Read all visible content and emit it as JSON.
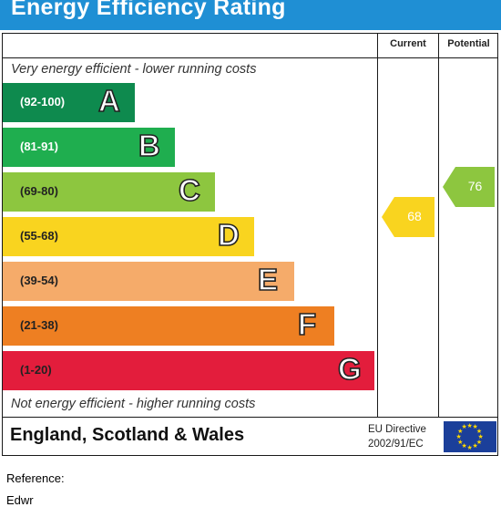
{
  "title": "Energy Efficiency Rating",
  "columns": {
    "current": "Current",
    "potential": "Potential"
  },
  "captions": {
    "top": "Very energy efficient - lower running costs",
    "bottom": "Not energy efficient - higher running costs"
  },
  "footer": {
    "region": "England, Scotland & Wales",
    "directive_line1": "EU Directive",
    "directive_line2": "2002/91/EC"
  },
  "below": {
    "reference": "Reference:",
    "second_line": "Edwr"
  },
  "chart_data": {
    "type": "bar",
    "title": "Energy Efficiency Rating",
    "categories": [
      "A",
      "B",
      "C",
      "D",
      "E",
      "F",
      "G"
    ],
    "ranges": [
      "(92-100)",
      "(81-91)",
      "(69-80)",
      "(55-68)",
      "(39-54)",
      "(21-38)",
      "(1-20)"
    ],
    "band_min": [
      92,
      81,
      69,
      55,
      39,
      21,
      1
    ],
    "band_max": [
      100,
      91,
      80,
      68,
      54,
      38,
      20
    ],
    "colors": [
      "#0e8a4e",
      "#1fae4f",
      "#8dc63f",
      "#f9d41f",
      "#f5ab6a",
      "#ee7f22",
      "#e31d3c"
    ],
    "range_text_colors": [
      "#ffffff",
      "#ffffff",
      "#222222",
      "#222222",
      "#222222",
      "#222222",
      "#222222"
    ],
    "current": {
      "name": "Current",
      "value": 68,
      "band": "D",
      "color": "#f9d41f"
    },
    "potential": {
      "name": "Potential",
      "value": 76,
      "band": "C",
      "color": "#8dc63f"
    }
  }
}
